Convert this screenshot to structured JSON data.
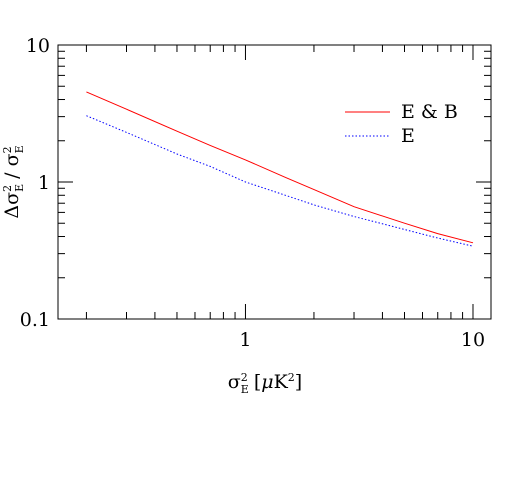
{
  "chart_data": {
    "type": "line",
    "xscale": "log",
    "yscale": "log",
    "xlim": [
      0.15,
      12
    ],
    "ylim": [
      0.1,
      10
    ],
    "xticks": [
      {
        "value": 1,
        "label": "1"
      },
      {
        "value": 10,
        "label": "10"
      }
    ],
    "yticks": [
      {
        "value": 0.1,
        "label": "0.1"
      },
      {
        "value": 1,
        "label": "1"
      },
      {
        "value": 10,
        "label": "10"
      }
    ],
    "xlabel": {
      "symbol": "σ",
      "sub": "E",
      "sup": "2",
      "unit_open": " [",
      "unit_mu": "μ",
      "unit_K": "K",
      "unit_sup": "2",
      "unit_close": "]"
    },
    "ylabel": {
      "delta": "Δ",
      "sigma": "σ",
      "sub": "E",
      "sup": "2",
      "slash": " / "
    },
    "legend_position": "top-right",
    "series": [
      {
        "name": "E & B",
        "color": "#ff0000",
        "dash": "solid",
        "x": [
          0.2,
          0.3,
          0.5,
          0.7,
          1.0,
          1.5,
          2.0,
          3.0,
          5.0,
          7.0,
          10.0
        ],
        "y": [
          4.55,
          3.4,
          2.35,
          1.85,
          1.45,
          1.08,
          0.88,
          0.66,
          0.5,
          0.42,
          0.36
        ]
      },
      {
        "name": "E",
        "color": "#0000ff",
        "dash": "dotted",
        "x": [
          0.2,
          0.3,
          0.5,
          0.7,
          1.0,
          1.5,
          2.0,
          3.0,
          5.0,
          7.0,
          10.0
        ],
        "y": [
          3.05,
          2.3,
          1.6,
          1.3,
          1.0,
          0.8,
          0.68,
          0.56,
          0.45,
          0.39,
          0.34
        ]
      }
    ]
  }
}
